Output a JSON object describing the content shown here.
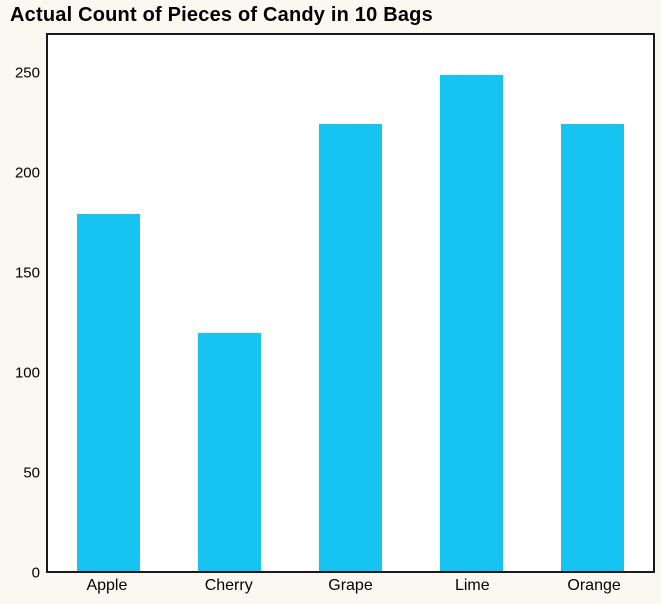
{
  "title": "Actual Count of Pieces of Candy in 10 Bags",
  "colors": {
    "bar": "#17C3F0",
    "plot_border": "#1A1A1A",
    "background": "#FAF8F1",
    "plot_background": "#FFFFFF",
    "text": "#000000"
  },
  "chart_data": {
    "type": "bar",
    "title": "Actual Count of Pieces of Candy in 10 Bags",
    "categories": [
      "Apple",
      "Cherry",
      "Grape",
      "Lime",
      "Orange"
    ],
    "values": [
      180,
      120,
      225,
      250,
      225
    ],
    "xlabel": "",
    "ylabel": "",
    "ylim": [
      0,
      270
    ],
    "yticks": [
      0,
      50,
      100,
      150,
      200,
      250
    ],
    "grid": false,
    "legend_position": "none"
  }
}
